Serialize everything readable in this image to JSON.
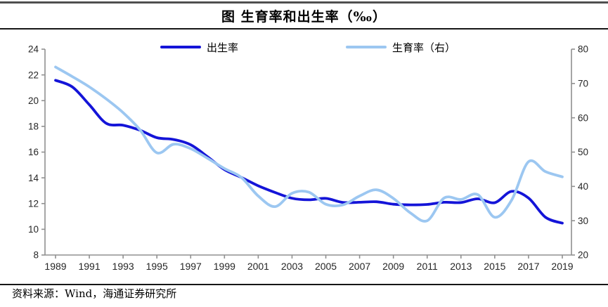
{
  "header": {
    "title": "图 生育率和出生率（‰）"
  },
  "legend": {
    "items": [
      {
        "label": "出生率",
        "color": "#1414d8"
      },
      {
        "label": "生育率（右）",
        "color": "#9cc7f1"
      }
    ]
  },
  "footer": {
    "source": "资料来源：Wind，海通证券研究所"
  },
  "colors": {
    "birth_rate_line": "#1414d8",
    "fertility_line": "#9cc7f1",
    "axis": "#909090",
    "tick_label": "#262626",
    "top_rule": "#4f4f4f",
    "text_rule": "#161616"
  },
  "chart_data": {
    "type": "line",
    "title": "图 生育率和出生率（‰）",
    "x": [
      1989,
      1990,
      1991,
      1992,
      1993,
      1994,
      1995,
      1996,
      1997,
      1998,
      1999,
      2000,
      2001,
      2002,
      2003,
      2004,
      2005,
      2006,
      2007,
      2008,
      2009,
      2010,
      2011,
      2012,
      2013,
      2014,
      2015,
      2016,
      2017,
      2018,
      2019
    ],
    "x_tick_labels": [
      "1989",
      "1991",
      "1993",
      "1995",
      "1997",
      "1999",
      "2001",
      "2003",
      "2005",
      "2007",
      "2009",
      "2011",
      "2013",
      "2015",
      "2017",
      "2019"
    ],
    "left_axis": {
      "min": 8,
      "max": 24,
      "ticks": [
        8,
        10,
        12,
        14,
        16,
        18,
        20,
        22,
        24
      ]
    },
    "right_axis": {
      "min": 20,
      "max": 80,
      "ticks": [
        20,
        30,
        40,
        50,
        60,
        70,
        80
      ]
    },
    "grid": false,
    "legend_position": "top",
    "series": [
      {
        "name": "出生率",
        "axis": "left",
        "color": "#1414d8",
        "values": [
          21.58,
          21.06,
          19.68,
          18.24,
          18.09,
          17.7,
          17.12,
          16.98,
          16.57,
          15.64,
          14.64,
          14.03,
          13.38,
          12.86,
          12.41,
          12.29,
          12.4,
          12.09,
          12.1,
          12.14,
          11.95,
          11.9,
          11.93,
          12.1,
          12.08,
          12.37,
          12.07,
          12.95,
          12.43,
          10.94,
          10.48
        ]
      },
      {
        "name": "生育率（右）",
        "axis": "right",
        "color": "#9cc7f1",
        "values": [
          74.8,
          72.0,
          69.0,
          65.5,
          61.5,
          56.5,
          49.8,
          52.3,
          51.0,
          48.2,
          45.2,
          42.6,
          37.2,
          34.1,
          38.0,
          38.3,
          34.8,
          34.6,
          37.2,
          39.0,
          36.5,
          32.3,
          30.0,
          36.6,
          36.2,
          37.6,
          31.0,
          36.0,
          47.2,
          44.3,
          42.8
        ]
      }
    ]
  }
}
